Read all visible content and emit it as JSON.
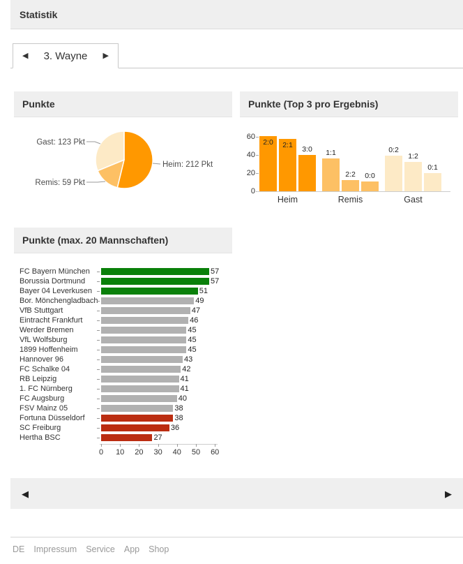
{
  "page": {
    "title": "Statistik"
  },
  "tab": {
    "prev_icon": "◀",
    "next_icon": "▶",
    "label": "3. Wayne"
  },
  "bottom_nav": {
    "prev_icon": "◀",
    "next_icon": "▶"
  },
  "footer": {
    "links": [
      "DE",
      "Impressum",
      "Service",
      "App",
      "Shop"
    ]
  },
  "chart_data": [
    {
      "type": "pie",
      "title": "Punkte",
      "labels": [
        "Heim",
        "Remis",
        "Gast"
      ],
      "values": [
        212,
        59,
        123
      ],
      "unit": "Pkt",
      "display_labels": [
        "Heim: 212 Pkt",
        "Remis: 59 Pkt",
        "Gast: 123 Pkt"
      ],
      "colors": [
        "#ff9800",
        "#fdc064",
        "#fdeac6"
      ],
      "start_angle_deg": 0,
      "direction": "clockwise"
    },
    {
      "type": "bar",
      "title": "Punkte (Top 3 pro Ergebnis)",
      "ylim": [
        0,
        65
      ],
      "yticks": [
        0,
        20,
        40,
        60
      ],
      "groups": [
        {
          "label": "Heim",
          "color": "#ff9800",
          "bars": [
            {
              "label": "2:0",
              "value": 61
            },
            {
              "label": "2:1",
              "value": 58
            },
            {
              "label": "3:0",
              "value": 40
            }
          ]
        },
        {
          "label": "Remis",
          "color": "#fdc064",
          "bars": [
            {
              "label": "1:1",
              "value": 36
            },
            {
              "label": "2:2",
              "value": 12
            },
            {
              "label": "0:0",
              "value": 11
            }
          ]
        },
        {
          "label": "Gast",
          "color": "#fdeac6",
          "bars": [
            {
              "label": "0:2",
              "value": 39
            },
            {
              "label": "1:2",
              "value": 32
            },
            {
              "label": "0:1",
              "value": 20
            }
          ]
        }
      ]
    },
    {
      "type": "bar-horizontal",
      "title": "Punkte (max. 20 Mannschaften)",
      "xlim": [
        0,
        65
      ],
      "xticks": [
        0,
        10,
        20,
        30,
        40,
        50,
        60
      ],
      "bar_colors": {
        "green": "#0a800a",
        "gray": "#b1b1b1",
        "red": "#bb2d11"
      },
      "rows": [
        {
          "team": "FC Bayern München",
          "value": 57,
          "color": "green"
        },
        {
          "team": "Borussia Dortmund",
          "value": 57,
          "color": "green"
        },
        {
          "team": "Bayer 04 Leverkusen",
          "value": 51,
          "color": "green"
        },
        {
          "team": "Bor. Mönchengladbach",
          "value": 49,
          "color": "gray"
        },
        {
          "team": "VfB Stuttgart",
          "value": 47,
          "color": "gray"
        },
        {
          "team": "Eintracht Frankfurt",
          "value": 46,
          "color": "gray"
        },
        {
          "team": "Werder Bremen",
          "value": 45,
          "color": "gray"
        },
        {
          "team": "VfL Wolfsburg",
          "value": 45,
          "color": "gray"
        },
        {
          "team": "1899 Hoffenheim",
          "value": 45,
          "color": "gray"
        },
        {
          "team": "Hannover 96",
          "value": 43,
          "color": "gray"
        },
        {
          "team": "FC Schalke 04",
          "value": 42,
          "color": "gray"
        },
        {
          "team": "RB Leipzig",
          "value": 41,
          "color": "gray"
        },
        {
          "team": "1. FC Nürnberg",
          "value": 41,
          "color": "gray"
        },
        {
          "team": "FC Augsburg",
          "value": 40,
          "color": "gray"
        },
        {
          "team": "FSV Mainz 05",
          "value": 38,
          "color": "gray"
        },
        {
          "team": "Fortuna Düsseldorf",
          "value": 38,
          "color": "red"
        },
        {
          "team": "SC Freiburg",
          "value": 36,
          "color": "red"
        },
        {
          "team": "Hertha BSC",
          "value": 27,
          "color": "red"
        }
      ]
    }
  ]
}
